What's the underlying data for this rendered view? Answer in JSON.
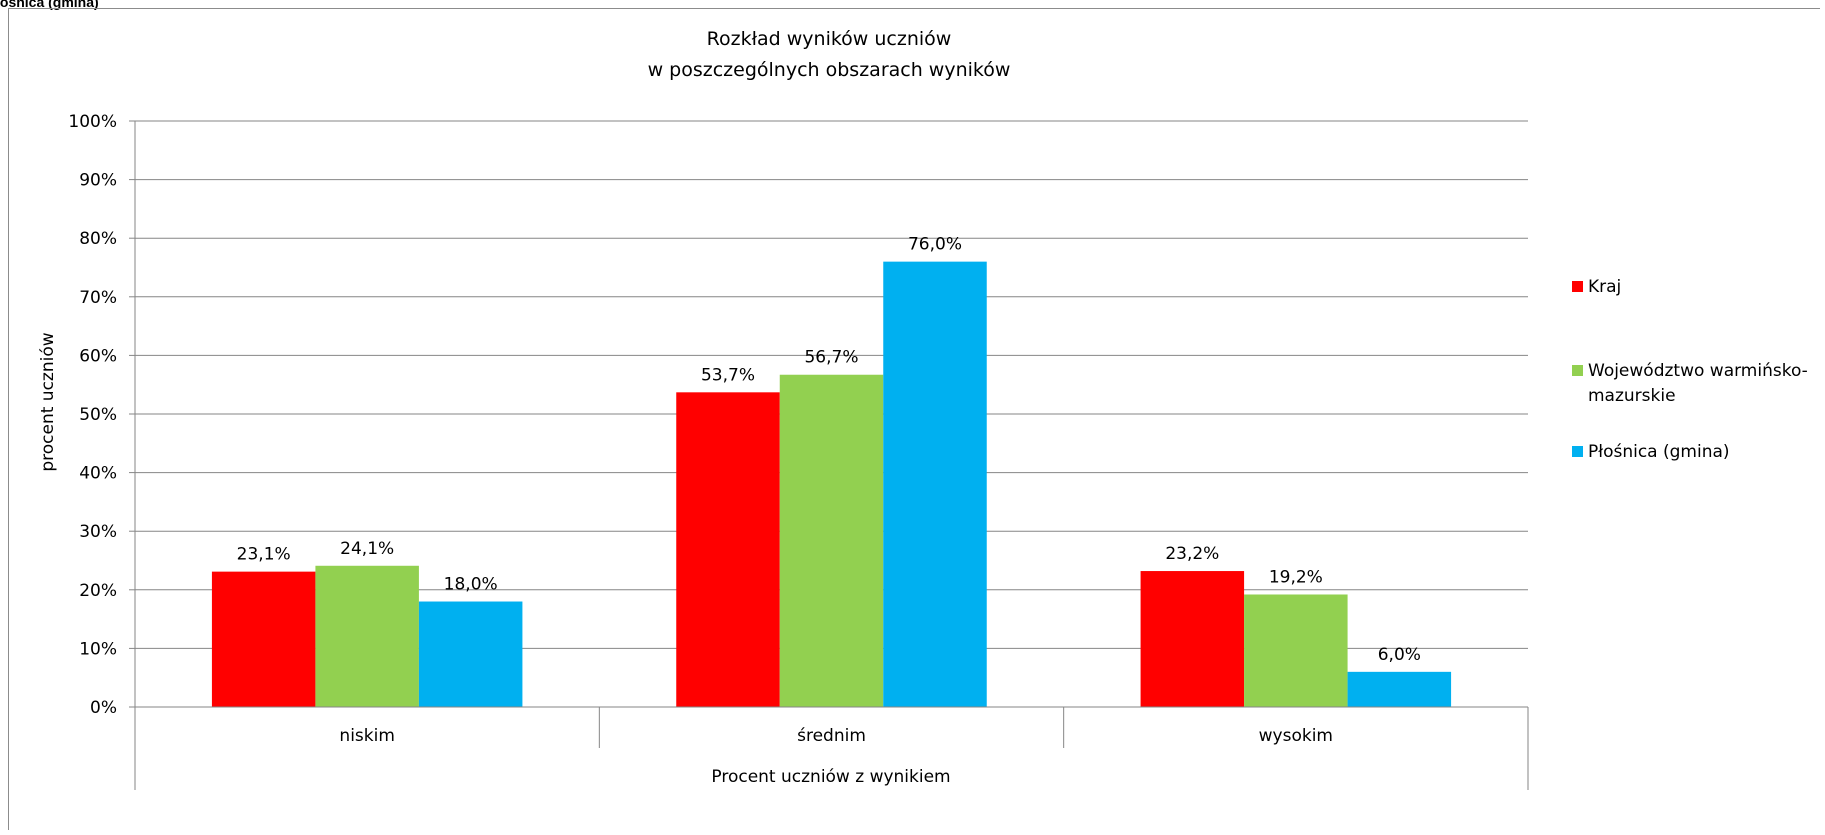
{
  "header_label": "łośnica (gmina)",
  "chart_data": {
    "type": "bar",
    "title_lines": [
      "Rozkład wyników uczniów",
      "w poszczególnych obszarach wyników"
    ],
    "xlabel": "Procent uczniów z wynikiem",
    "ylabel": "procent uczniów",
    "categories": [
      "niskim",
      "średnim",
      "wysokim"
    ],
    "ylim": [
      0,
      100
    ],
    "yticks": [
      "0%",
      "10%",
      "20%",
      "30%",
      "40%",
      "50%",
      "60%",
      "70%",
      "80%",
      "90%",
      "100%"
    ],
    "grid": true,
    "legend_position": "right",
    "series": [
      {
        "name": "Kraj",
        "color": "#ff0000",
        "values": [
          23.1,
          53.7,
          23.2
        ],
        "labels": [
          "23,1%",
          "53,7%",
          "23,2%"
        ]
      },
      {
        "name": "Województwo warmińsko-mazurskie",
        "legend_lines": [
          "Województwo warmińsko-",
          "mazurskie"
        ],
        "color": "#92d050",
        "values": [
          24.1,
          56.7,
          19.2
        ],
        "labels": [
          "24,1%",
          "56,7%",
          "19,2%"
        ]
      },
      {
        "name": "Płośnica (gmina)",
        "color": "#00b0f0",
        "values": [
          18.0,
          76.0,
          6.0
        ],
        "labels": [
          "18,0%",
          "76,0%",
          "6,0%"
        ]
      }
    ]
  }
}
